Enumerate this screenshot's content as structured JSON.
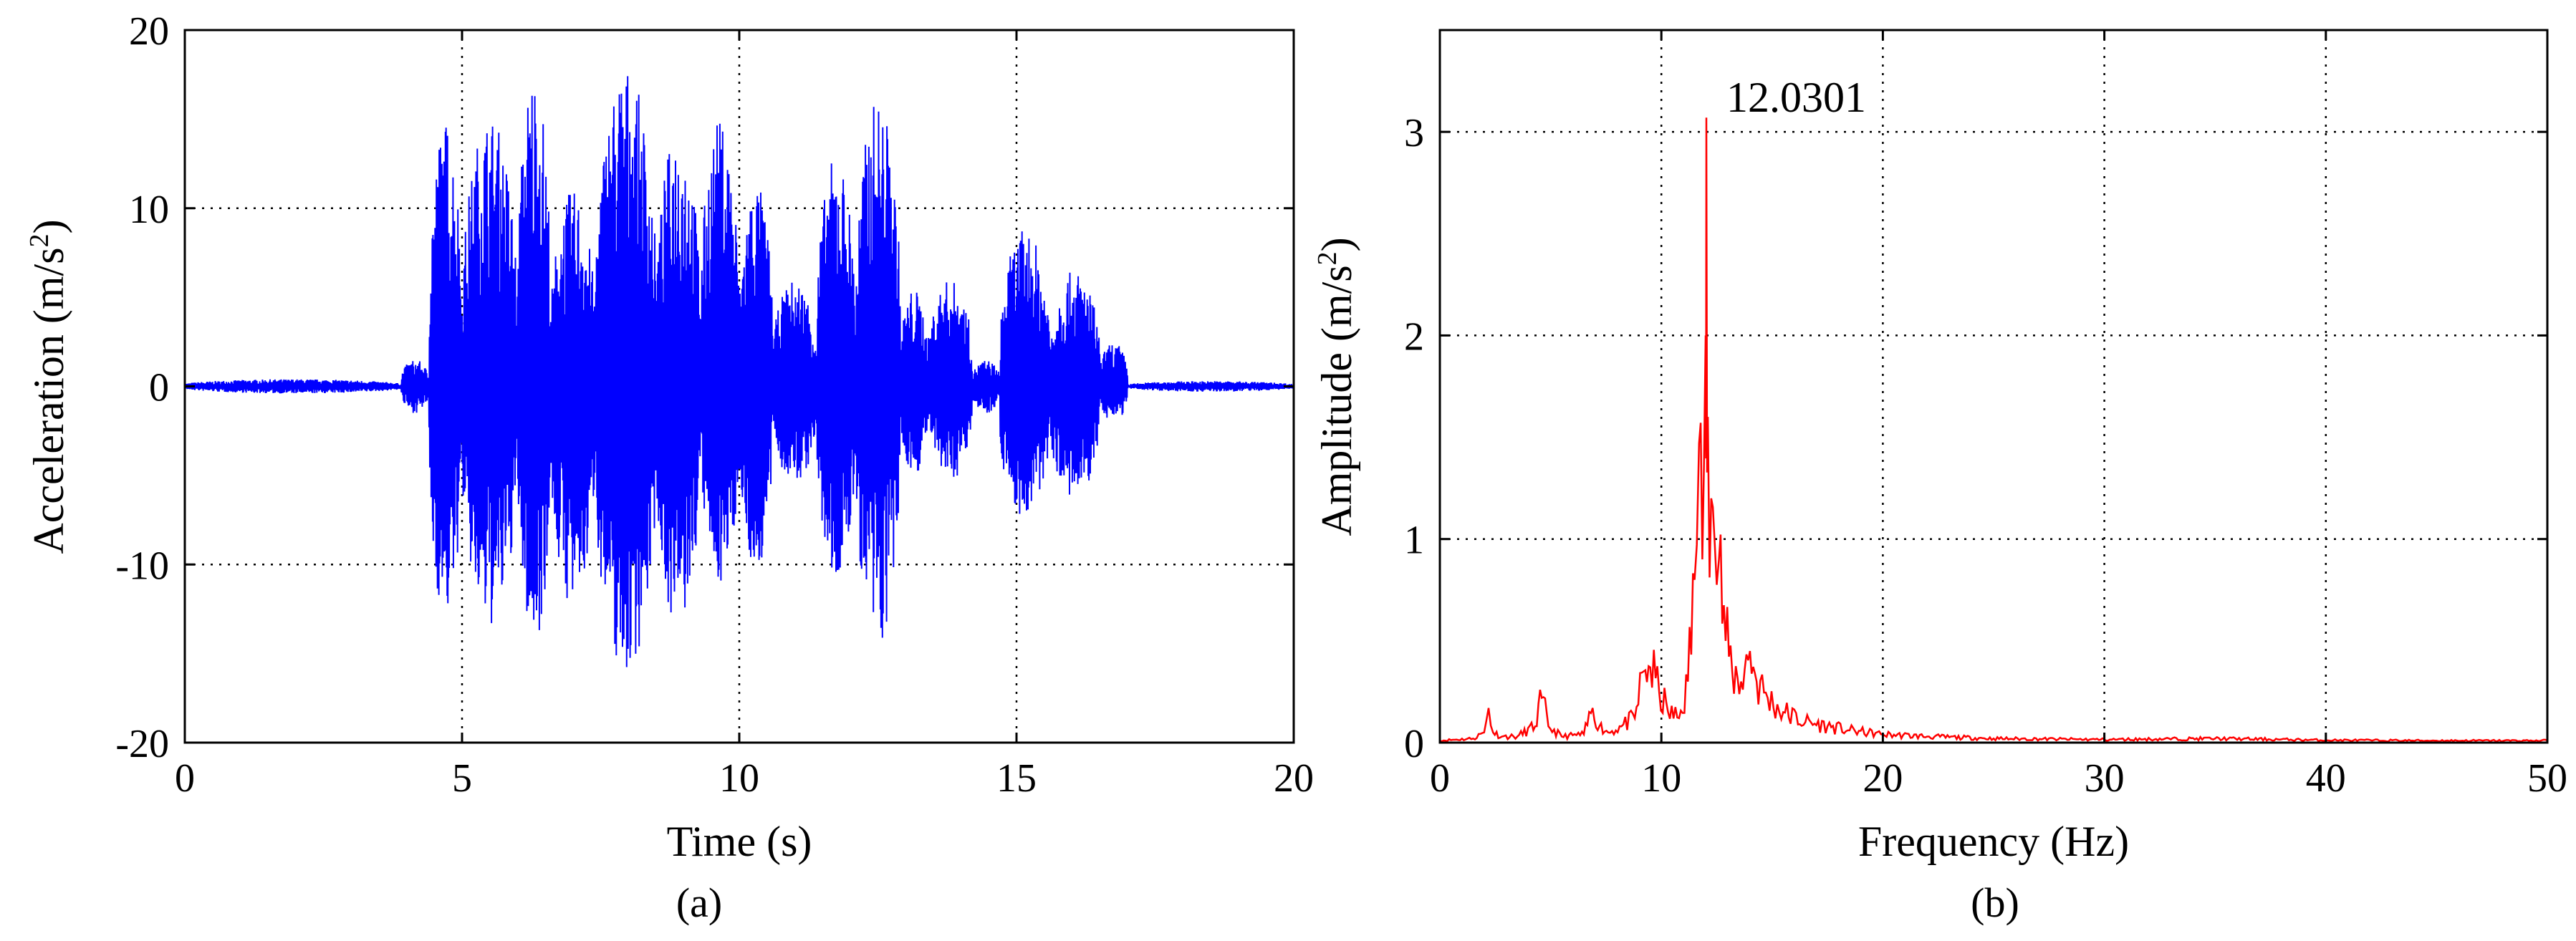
{
  "chart_data": [
    {
      "type": "line",
      "panel": "(a)",
      "caption": "(a)",
      "xlabel": "Time (s)",
      "ylabel_main": "Acceleration (m/s",
      "ylabel_sup": "2",
      "ylabel_close": ")",
      "xlim": [
        0,
        20
      ],
      "ylim": [
        -20,
        20
      ],
      "xticks": [
        0,
        5,
        10,
        15,
        20
      ],
      "yticks": [
        -20,
        -10,
        0,
        10,
        20
      ],
      "grid": true,
      "series": [
        {
          "color": "#0000ff",
          "bursts": [
            {
              "t_start": 0.0,
              "t_end": 3.9,
              "peak_pos": 0.4,
              "peak_neg": -0.4
            },
            {
              "t_start": 3.9,
              "t_end": 4.4,
              "peak_pos": 1.5,
              "peak_neg": -1.5
            },
            {
              "t_start": 4.4,
              "t_end": 5.0,
              "peak_pos": 15.0,
              "peak_neg": -13.0
            },
            {
              "t_start": 5.0,
              "t_end": 6.0,
              "peak_pos": 15.2,
              "peak_neg": -13.6
            },
            {
              "t_start": 6.0,
              "t_end": 6.6,
              "peak_pos": 17.8,
              "peak_neg": -14.5
            },
            {
              "t_start": 6.6,
              "t_end": 7.4,
              "peak_pos": 11.0,
              "peak_neg": -12.5
            },
            {
              "t_start": 7.4,
              "t_end": 8.5,
              "peak_pos": 18.0,
              "peak_neg": -16.2
            },
            {
              "t_start": 8.5,
              "t_end": 9.3,
              "peak_pos": 14.5,
              "peak_neg": -13.6
            },
            {
              "t_start": 9.3,
              "t_end": 10.0,
              "peak_pos": 15.0,
              "peak_neg": -11.0
            },
            {
              "t_start": 10.0,
              "t_end": 10.6,
              "peak_pos": 11.5,
              "peak_neg": -10.5
            },
            {
              "t_start": 10.6,
              "t_end": 11.4,
              "peak_pos": 6.0,
              "peak_neg": -5.5
            },
            {
              "t_start": 11.4,
              "t_end": 12.1,
              "peak_pos": 13.0,
              "peak_neg": -11.0
            },
            {
              "t_start": 12.1,
              "t_end": 12.9,
              "peak_pos": 16.2,
              "peak_neg": -14.8
            },
            {
              "t_start": 12.9,
              "t_end": 13.4,
              "peak_pos": 5.5,
              "peak_neg": -5.0
            },
            {
              "t_start": 13.4,
              "t_end": 14.2,
              "peak_pos": 6.0,
              "peak_neg": -5.3
            },
            {
              "t_start": 14.2,
              "t_end": 14.7,
              "peak_pos": 1.5,
              "peak_neg": -1.5
            },
            {
              "t_start": 14.7,
              "t_end": 15.6,
              "peak_pos": 8.8,
              "peak_neg": -7.5
            },
            {
              "t_start": 15.6,
              "t_end": 16.5,
              "peak_pos": 6.5,
              "peak_neg": -6.5
            },
            {
              "t_start": 16.5,
              "t_end": 17.0,
              "peak_pos": 2.5,
              "peak_neg": -2.0
            },
            {
              "t_start": 17.0,
              "t_end": 20.0,
              "peak_pos": 0.3,
              "peak_neg": -0.3
            }
          ]
        }
      ]
    },
    {
      "type": "line",
      "panel": "(b)",
      "caption": "(b)",
      "xlabel": "Frequency (Hz)",
      "ylabel_main": "Amplitude (m/s",
      "ylabel_sup": "2",
      "ylabel_close": ")",
      "xlim": [
        0,
        50
      ],
      "ylim": [
        0,
        3.5
      ],
      "xticks": [
        0,
        10,
        20,
        30,
        40,
        50
      ],
      "yticks": [
        0,
        1,
        2,
        3
      ],
      "grid": true,
      "annotation": {
        "text": "12.0301",
        "x": 12.0301,
        "y": 3.07
      },
      "series": [
        {
          "color": "#ff0000",
          "x": [
            0,
            1.5,
            2.0,
            2.2,
            2.4,
            2.8,
            3.5,
            4.3,
            4.6,
            4.9,
            5.5,
            6.5,
            6.9,
            7.2,
            7.6,
            8.2,
            8.8,
            9.2,
            9.5,
            9.9,
            10.3,
            10.8,
            11.2,
            11.5,
            11.7,
            11.85,
            12.0,
            12.03,
            12.1,
            12.25,
            12.4,
            12.6,
            12.9,
            13.2,
            13.6,
            14.0,
            14.3,
            14.8,
            15.5,
            16.5,
            17.5,
            18.5,
            20.0,
            22.0,
            25.0,
            30.0,
            35.0,
            40.0,
            45.0,
            50.0
          ],
          "y": [
            0.01,
            0.02,
            0.05,
            0.17,
            0.05,
            0.03,
            0.03,
            0.08,
            0.22,
            0.08,
            0.03,
            0.04,
            0.17,
            0.08,
            0.05,
            0.08,
            0.12,
            0.35,
            0.37,
            0.25,
            0.15,
            0.12,
            0.3,
            0.8,
            1.47,
            0.9,
            2.0,
            3.07,
            1.6,
            1.2,
            1.0,
            0.9,
            0.5,
            0.35,
            0.3,
            0.45,
            0.3,
            0.22,
            0.15,
            0.1,
            0.08,
            0.06,
            0.04,
            0.03,
            0.02,
            0.015,
            0.02,
            0.012,
            0.01,
            0.01
          ]
        }
      ]
    }
  ]
}
